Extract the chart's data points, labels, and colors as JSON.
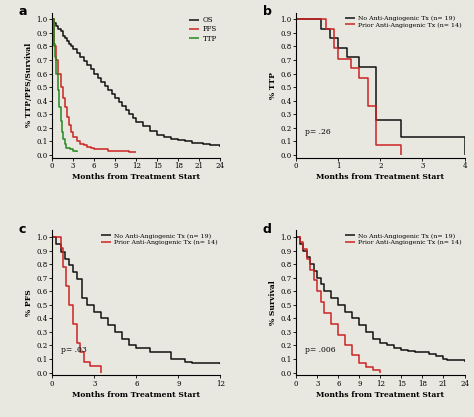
{
  "panel_a": {
    "title": "a",
    "xlabel": "Months from Treatment Start",
    "ylabel": "% TTP/PFS/Survival",
    "xlim": [
      0,
      24
    ],
    "ylim": [
      -0.02,
      1.05
    ],
    "xticks": [
      0,
      3,
      6,
      9,
      12,
      15,
      18,
      21,
      24
    ],
    "yticks": [
      0.0,
      0.1,
      0.2,
      0.3,
      0.4,
      0.5,
      0.6,
      0.7,
      0.8,
      0.9,
      1.0
    ],
    "OS": {
      "x": [
        0,
        0.3,
        0.6,
        0.9,
        1.2,
        1.5,
        1.8,
        2.1,
        2.4,
        2.7,
        3.0,
        3.5,
        4.0,
        4.5,
        5.0,
        5.5,
        6.0,
        6.5,
        7.0,
        7.5,
        8.0,
        8.5,
        9.0,
        9.5,
        10.0,
        10.5,
        11.0,
        11.5,
        12.0,
        13.0,
        14.0,
        15.0,
        16.0,
        17.0,
        18.0,
        19.0,
        20.0,
        21.0,
        21.5,
        22.0,
        22.5,
        23.0,
        24.0
      ],
      "y": [
        1.0,
        0.97,
        0.95,
        0.93,
        0.91,
        0.88,
        0.86,
        0.84,
        0.82,
        0.8,
        0.78,
        0.75,
        0.72,
        0.69,
        0.66,
        0.63,
        0.6,
        0.57,
        0.54,
        0.51,
        0.48,
        0.45,
        0.42,
        0.39,
        0.36,
        0.33,
        0.3,
        0.27,
        0.24,
        0.21,
        0.18,
        0.15,
        0.13,
        0.12,
        0.11,
        0.1,
        0.09,
        0.09,
        0.08,
        0.08,
        0.07,
        0.07,
        0.06
      ],
      "color": "#111111",
      "label": "OS"
    },
    "PFS": {
      "x": [
        0,
        0.3,
        0.6,
        0.9,
        1.2,
        1.5,
        1.8,
        2.1,
        2.4,
        2.7,
        3.0,
        3.5,
        4.0,
        4.5,
        5.0,
        5.5,
        6.0,
        7.0,
        8.0,
        9.0,
        10.0,
        11.0,
        12.0
      ],
      "y": [
        1.0,
        0.8,
        0.7,
        0.6,
        0.5,
        0.42,
        0.35,
        0.28,
        0.22,
        0.17,
        0.13,
        0.1,
        0.08,
        0.07,
        0.06,
        0.05,
        0.04,
        0.04,
        0.03,
        0.03,
        0.03,
        0.02,
        0.02
      ],
      "color": "#cc2222",
      "label": "PFS"
    },
    "TTP": {
      "x": [
        0,
        0.2,
        0.4,
        0.6,
        0.8,
        1.0,
        1.2,
        1.4,
        1.6,
        1.8,
        2.0,
        2.5,
        3.0,
        3.5
      ],
      "y": [
        1.0,
        0.82,
        0.72,
        0.6,
        0.48,
        0.35,
        0.25,
        0.17,
        0.12,
        0.08,
        0.05,
        0.04,
        0.03,
        0.02
      ],
      "color": "#228822",
      "label": "TTP"
    }
  },
  "panel_b": {
    "title": "b",
    "xlabel": "Months from Treatment Start",
    "ylabel": "% TTP",
    "xlim": [
      0,
      4
    ],
    "ylim": [
      -0.02,
      1.05
    ],
    "xticks": [
      0,
      1,
      2,
      3,
      4
    ],
    "yticks": [
      0.0,
      0.1,
      0.2,
      0.3,
      0.4,
      0.5,
      0.6,
      0.7,
      0.8,
      0.9,
      1.0
    ],
    "pvalue": "p= .26",
    "no_anti": {
      "x": [
        0,
        0.4,
        0.6,
        0.8,
        1.0,
        1.2,
        1.5,
        1.7,
        1.9,
        2.0,
        2.5,
        3.8,
        4.0
      ],
      "y": [
        1.0,
        1.0,
        0.93,
        0.86,
        0.79,
        0.72,
        0.65,
        0.65,
        0.26,
        0.26,
        0.13,
        0.13,
        0.0
      ],
      "color": "#111111",
      "label": "No Anti-Angiogenic Tx (n= 19)"
    },
    "prior_anti": {
      "x": [
        0,
        0.4,
        0.7,
        0.9,
        1.0,
        1.3,
        1.5,
        1.7,
        1.9,
        2.0,
        2.15,
        2.3,
        2.5
      ],
      "y": [
        1.0,
        1.0,
        0.93,
        0.79,
        0.71,
        0.64,
        0.57,
        0.36,
        0.07,
        0.07,
        0.07,
        0.07,
        0.0
      ],
      "color": "#cc2222",
      "label": "Prior Anti-Angiogenic Tx (n= 14)"
    }
  },
  "panel_c": {
    "title": "c",
    "xlabel": "Months from Treatment Start",
    "ylabel": "% PFS",
    "xlim": [
      0,
      12
    ],
    "ylim": [
      -0.02,
      1.05
    ],
    "xticks": [
      0,
      3,
      6,
      9,
      12
    ],
    "yticks": [
      0.0,
      0.1,
      0.2,
      0.3,
      0.4,
      0.5,
      0.6,
      0.7,
      0.8,
      0.9,
      1.0
    ],
    "pvalue": "p= .03",
    "no_anti": {
      "x": [
        0,
        0.3,
        0.6,
        0.9,
        1.2,
        1.5,
        1.8,
        2.1,
        2.5,
        3.0,
        3.5,
        4.0,
        4.5,
        5.0,
        5.5,
        6.0,
        7.0,
        8.5,
        9.0,
        9.5,
        10.0,
        11.0,
        12.0
      ],
      "y": [
        1.0,
        0.95,
        0.89,
        0.84,
        0.79,
        0.74,
        0.69,
        0.55,
        0.5,
        0.45,
        0.4,
        0.35,
        0.3,
        0.25,
        0.2,
        0.18,
        0.15,
        0.1,
        0.1,
        0.08,
        0.07,
        0.07,
        0.06
      ],
      "color": "#111111",
      "label": "No Anti-Angiogenic Tx (n= 19)"
    },
    "prior_anti": {
      "x": [
        0,
        0.3,
        0.6,
        0.8,
        1.0,
        1.2,
        1.5,
        1.8,
        2.0,
        2.3,
        2.7,
        3.0,
        3.5
      ],
      "y": [
        1.0,
        1.0,
        0.92,
        0.78,
        0.64,
        0.5,
        0.36,
        0.22,
        0.15,
        0.08,
        0.05,
        0.05,
        0.0
      ],
      "color": "#cc2222",
      "label": "Prior Anti-Angiogenic Tx (n= 14)"
    }
  },
  "panel_d": {
    "title": "d",
    "xlabel": "Months from Treatment Start",
    "ylabel": "% Survival",
    "xlim": [
      0,
      24
    ],
    "ylim": [
      -0.02,
      1.05
    ],
    "xticks": [
      0,
      3,
      6,
      9,
      12,
      15,
      18,
      21,
      24
    ],
    "yticks": [
      0.0,
      0.1,
      0.2,
      0.3,
      0.4,
      0.5,
      0.6,
      0.7,
      0.8,
      0.9,
      1.0
    ],
    "pvalue": "p= .006",
    "no_anti": {
      "x": [
        0,
        0.5,
        1.0,
        1.5,
        2.0,
        2.5,
        3.0,
        3.5,
        4.0,
        5.0,
        6.0,
        7.0,
        8.0,
        9.0,
        10.0,
        11.0,
        12.0,
        13.0,
        14.0,
        15.0,
        16.0,
        17.0,
        18.0,
        19.0,
        20.0,
        21.0,
        21.5,
        22.0,
        24.0
      ],
      "y": [
        1.0,
        0.95,
        0.9,
        0.85,
        0.8,
        0.75,
        0.7,
        0.65,
        0.6,
        0.55,
        0.5,
        0.45,
        0.4,
        0.35,
        0.3,
        0.25,
        0.22,
        0.2,
        0.18,
        0.17,
        0.16,
        0.15,
        0.15,
        0.14,
        0.12,
        0.1,
        0.09,
        0.09,
        0.08
      ],
      "color": "#111111",
      "label": "No Anti-Angiogenic Tx (n= 19)"
    },
    "prior_anti": {
      "x": [
        0,
        0.5,
        1.0,
        1.5,
        2.0,
        2.5,
        3.0,
        3.5,
        4.0,
        5.0,
        6.0,
        7.0,
        8.0,
        9.0,
        10.0,
        11.0,
        12.0
      ],
      "y": [
        1.0,
        0.96,
        0.91,
        0.84,
        0.76,
        0.68,
        0.6,
        0.52,
        0.44,
        0.36,
        0.28,
        0.2,
        0.13,
        0.07,
        0.04,
        0.02,
        0.0
      ],
      "color": "#cc2222",
      "label": "Prior Anti-Angiogenic Tx (n= 14)"
    }
  },
  "bg_color": "#e8e8e0",
  "axes_bg": "#e8e8e0"
}
